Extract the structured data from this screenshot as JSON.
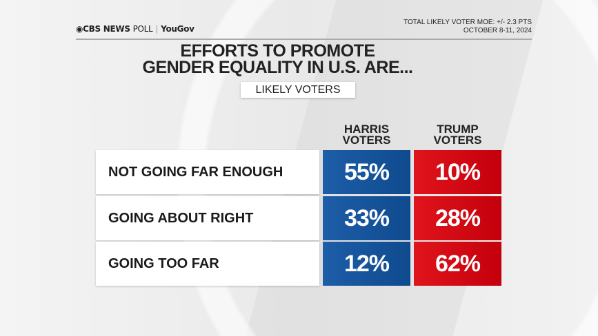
{
  "header": {
    "brand": "CBS NEWS",
    "brand_suffix": "POLL",
    "partner": "YouGov",
    "moe": "TOTAL LIKELY VOTER MOE: +/- 2.3 PTS",
    "dates": "OCTOBER 8-11, 2024"
  },
  "colors": {
    "harris": "#1d5ea8",
    "trump": "#d9101a"
  },
  "chart_data": {
    "type": "table",
    "title_line1": "EFFORTS TO PROMOTE",
    "title_line2": "GENDER EQUALITY IN U.S. ARE...",
    "subtitle": "LIKELY VOTERS",
    "columns": [
      {
        "line1": "HARRIS",
        "line2": "VOTERS"
      },
      {
        "line1": "TRUMP",
        "line2": "VOTERS"
      }
    ],
    "rows": [
      {
        "label": "NOT GOING FAR ENOUGH",
        "values": [
          "55%",
          "10%"
        ]
      },
      {
        "label": "GOING ABOUT RIGHT",
        "values": [
          "33%",
          "28%"
        ]
      },
      {
        "label": "GOING TOO FAR",
        "values": [
          "12%",
          "62%"
        ]
      }
    ]
  }
}
